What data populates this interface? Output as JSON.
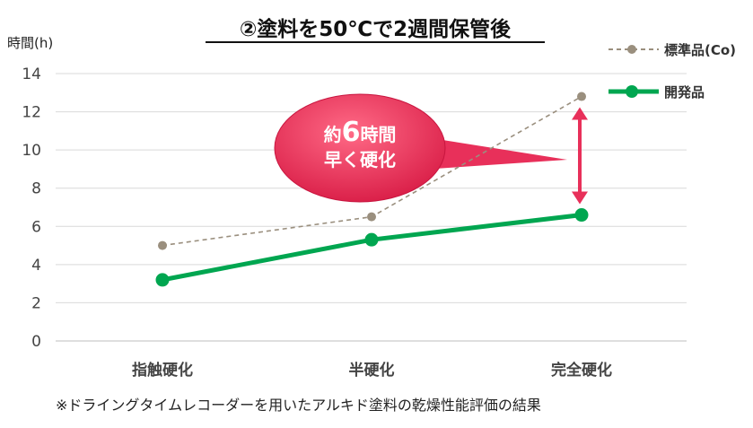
{
  "chart_data": {
    "type": "line",
    "title": "②塗料を50℃で2週間保管後",
    "ylabel": "時間(h)",
    "xlabel": "",
    "categories": [
      "指触硬化",
      "半硬化",
      "完全硬化"
    ],
    "ylim": [
      0,
      14
    ],
    "yticks": [
      0,
      2,
      4,
      6,
      8,
      10,
      12,
      14
    ],
    "grid": true,
    "legend_position": "top-right",
    "series": [
      {
        "name": "標準品(Co)",
        "values": [
          5.0,
          6.5,
          12.8
        ],
        "color": "#9a8f7e",
        "style": "dashed"
      },
      {
        "name": "開発品",
        "values": [
          3.2,
          5.3,
          6.6
        ],
        "color": "#00a650",
        "style": "solid"
      }
    ],
    "annotation": {
      "line1_prefix": "約",
      "line1_number": "6",
      "line1_suffix": "時間",
      "line2": "早く硬化",
      "color": "#e8305a"
    },
    "footnote": "※ドライングタイムレコーダーを用いたアルキド塗料の乾燥性能評価の結果"
  }
}
